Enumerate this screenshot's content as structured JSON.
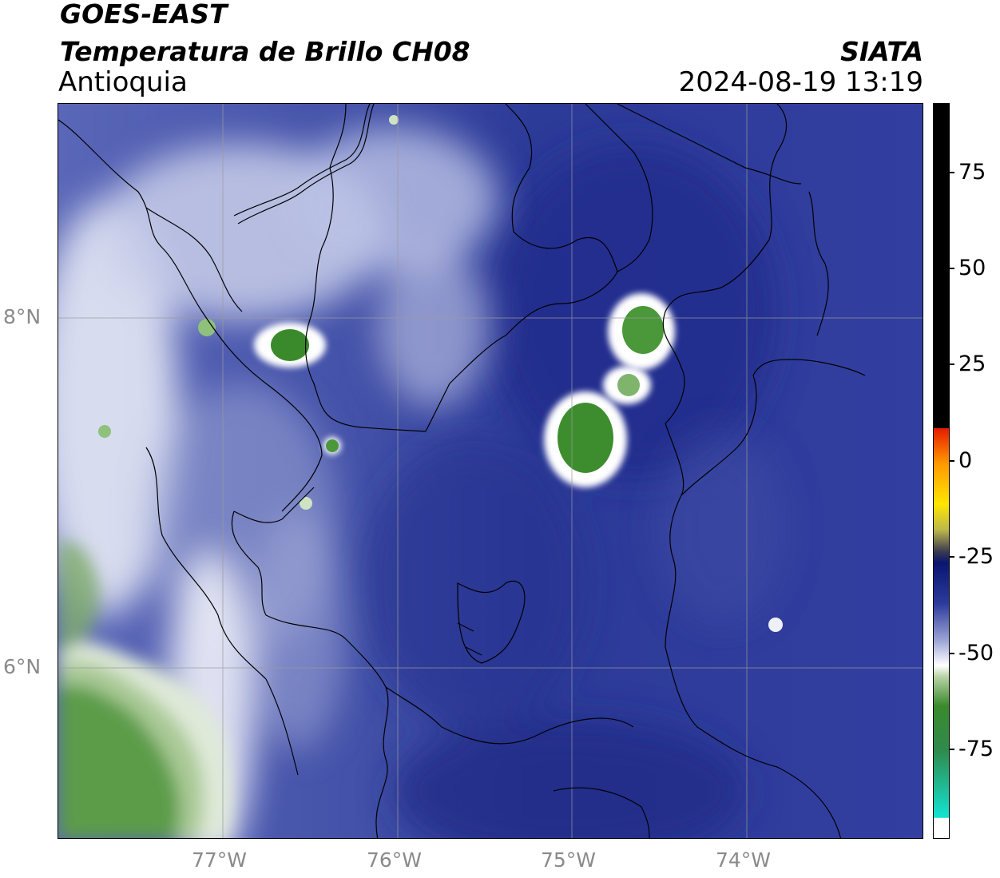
{
  "header": {
    "satellite": "GOES-EAST",
    "product": "Temperatura de Brillo CH08",
    "region": "Antioquia",
    "agency": "SIATA",
    "datetime": "2024-08-19 13:19"
  },
  "map": {
    "lon_labels": [
      "77°W",
      "76°W",
      "75°W",
      "74°W"
    ],
    "lat_labels": [
      "8°N",
      "6°N"
    ]
  },
  "colorbar": {
    "ticks": [
      "75",
      "50",
      "25",
      "0",
      "-25",
      "-50",
      "-75"
    ],
    "colors": {
      "black": "#000000",
      "red": "#e51b00",
      "orange": "#ff9900",
      "yellow": "#ffe600",
      "navy": "#0a1570",
      "blue": "#2b3a9c",
      "white": "#ffffff",
      "green": "#3a8a2c",
      "cyan": "#12e3d2"
    }
  }
}
